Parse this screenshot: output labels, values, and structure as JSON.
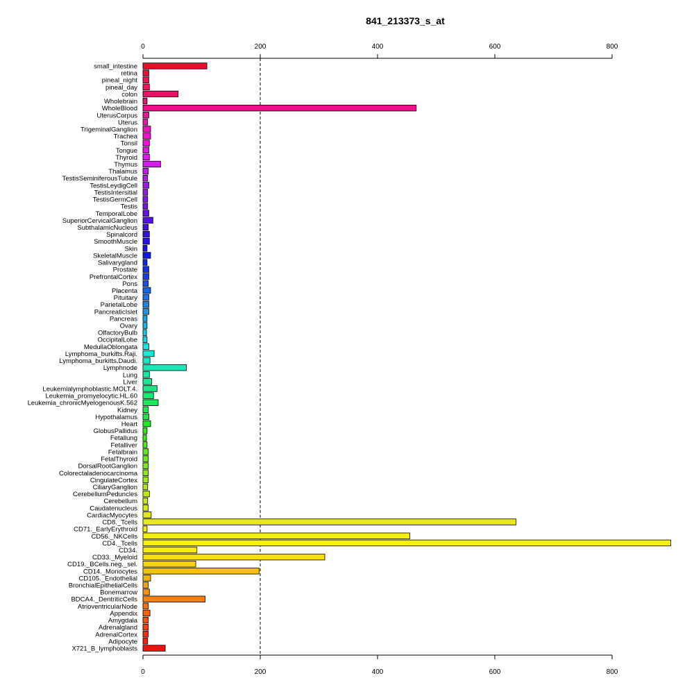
{
  "chart_data": {
    "type": "bar",
    "orientation": "horizontal",
    "title": "841_213373_s_at",
    "xlabel": "",
    "ylabel": "",
    "xlim": [
      0,
      800
    ],
    "xticks": [
      0,
      200,
      400,
      600,
      800
    ],
    "reference_line": 200,
    "grid": false,
    "categories": [
      "small_intestine",
      "retina",
      "pineal_night",
      "pineal_day",
      "colon",
      "Wholebrain",
      "WholeBlood",
      "UterusCorpus",
      "Uterus",
      "TrigeminalGanglion",
      "Trachea",
      "Tonsil",
      "Tongue",
      "Thyroid",
      "Thymus",
      "Thalamus",
      "TestisSeminiferousTubule",
      "TestisLeydigCell",
      "TestisIntersitial",
      "TestisGermCell",
      "Testis",
      "TemporalLobe",
      "SuperiorCervicalGanglion",
      "SubthalamicNucleus",
      "Spinalcord",
      "SmoothMuscle",
      "Skin",
      "SkeletalMuscle",
      "Salivarygland",
      "Prostate",
      "PrefrontalCortex",
      "Pons",
      "Placenta",
      "Pituitary",
      "ParietalLobe",
      "PancreaticIslet",
      "Pancreas",
      "Ovary",
      "OlfactoryBulb",
      "OccipitalLobe",
      "MedullaOblongata",
      "Lymphoma_burkitts.Raji.",
      "Lymphoma_burkitts.Daudi.",
      "Lymphnode",
      "Lung",
      "Liver",
      "Leukemialymphoblastic.MOLT.4.",
      "Leukemia_promyelocytic.HL.60",
      "Leukemia_chronicMyelogenousK.562",
      "Kidney",
      "Hypothalamus",
      "Heart",
      "GlobusPallidus",
      "Fetallung",
      "Fetalliver",
      "Fetalbrain",
      "FetalThyroid",
      "DorsalRootGanglion",
      "Colorectaladenocarcinoma",
      "CingulateCortex",
      "CiliaryGanglion",
      "CerebellumPeduncles",
      "Cerebellum",
      "Caudatenucleus",
      "CardiacMyocytes",
      "CD8._Tcells",
      "CD71._EarlyErythroid",
      "CD56._NKCells",
      "CD4._Tcells",
      "CD34.",
      "CD33._Myeloid",
      "CD19._BCells.neg._sel.",
      "CD14._Monocytes",
      "CD105._Endothelial",
      "BronchialEpithelialCells",
      "Bonemarrow",
      "BDCA4._DentriticCells",
      "AtrioventricularNode",
      "Appendix",
      "Amygdala",
      "Adrenalgland",
      "AdrenalCortex",
      "Adipocyte",
      "X721_B_lymphoblasts"
    ],
    "values": [
      109,
      10,
      10,
      11,
      60,
      7,
      466,
      10,
      8,
      13,
      13,
      11,
      10,
      11,
      30,
      9,
      8,
      10,
      8,
      8,
      8,
      10,
      17,
      9,
      11,
      11,
      7,
      13,
      7,
      10,
      10,
      9,
      13,
      10,
      10,
      10,
      7,
      7,
      6,
      7,
      10,
      19,
      12,
      74,
      11,
      15,
      24,
      18,
      26,
      9,
      10,
      13,
      7,
      6,
      7,
      9,
      9,
      9,
      9,
      9,
      8,
      11,
      8,
      9,
      14,
      636,
      7,
      455,
      900,
      92,
      310,
      90,
      198,
      13,
      9,
      11,
      106,
      9,
      12,
      9,
      9,
      9,
      8,
      38
    ],
    "colors": [
      "#ee0a28",
      "#f00f38",
      "#f0124a",
      "#f0145a",
      "#ef1168",
      "#ee0f78",
      "#ef0f88",
      "#ef1098",
      "#ef10a8",
      "#ee12b8",
      "#ee14c8",
      "#ef14d6",
      "#ec14e4",
      "#e016ee",
      "#d41ced",
      "#c21bea",
      "#b31ae8",
      "#a31be6",
      "#9418e6",
      "#8416e6",
      "#7414e6",
      "#6412e6",
      "#5410e6",
      "#4410e6",
      "#3412e6",
      "#2612e6",
      "#1812e6",
      "#1218e6",
      "#1226e6",
      "#1234e6",
      "#1444e6",
      "#1454e6",
      "#1664e6",
      "#1874e6",
      "#1884e6",
      "#1a94e6",
      "#1aa4e6",
      "#1ab4e6",
      "#1ac4e6",
      "#1ad4e6",
      "#1ae4e6",
      "#1ae8d8",
      "#1ae8c8",
      "#1ae8b8",
      "#1ae8a6",
      "#1ae894",
      "#1ae882",
      "#1ae870",
      "#1ae85e",
      "#1ae84c",
      "#1ae83a",
      "#20e828",
      "#30e81a",
      "#40e81a",
      "#50e81a",
      "#60e81a",
      "#70e81a",
      "#80e81a",
      "#90e81a",
      "#9fe81a",
      "#aee81a",
      "#bce81a",
      "#c9e81a",
      "#d4e81a",
      "#dfe81a",
      "#e8e81a",
      "#eeea12",
      "#f2ee0e",
      "#f6f20e",
      "#f7ea0e",
      "#f7de0e",
      "#f7d00e",
      "#f7c00e",
      "#f7b00e",
      "#f7a00e",
      "#f7900e",
      "#f7800e",
      "#f7700e",
      "#f7600e",
      "#f7500e",
      "#f6400e",
      "#f5300e",
      "#f3200e",
      "#f0100e"
    ]
  }
}
